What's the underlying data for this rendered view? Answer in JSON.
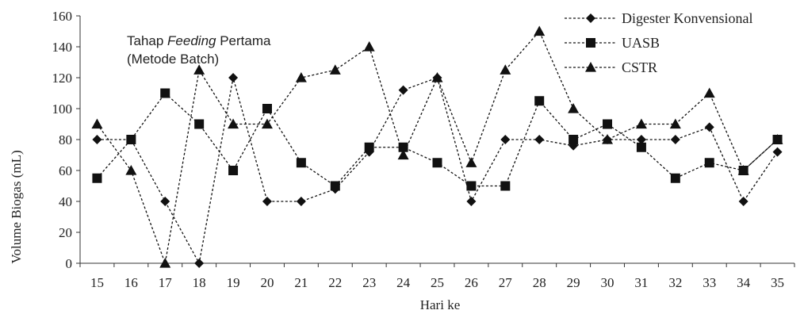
{
  "chart_data": {
    "type": "line",
    "xlabel": "Hari ke",
    "ylabel": "Volume Biogas (mL)",
    "x": [
      15,
      16,
      17,
      18,
      19,
      20,
      21,
      22,
      23,
      24,
      25,
      26,
      27,
      28,
      29,
      30,
      31,
      32,
      33,
      34,
      35
    ],
    "ylim": [
      0,
      160
    ],
    "yticks": [
      0,
      20,
      40,
      60,
      80,
      100,
      120,
      140,
      160
    ],
    "grid": false,
    "legend_position": "top-right",
    "annotation": {
      "line1_prefix": "Tahap ",
      "line1_italic": "Feeding",
      "line1_suffix": " Pertama",
      "line2": "(Metode Batch)"
    },
    "series": [
      {
        "name": "Digester Konvensional",
        "marker": "diamond",
        "color": "#111111",
        "values": [
          80,
          80,
          40,
          0,
          120,
          40,
          40,
          48,
          72,
          112,
          120,
          40,
          80,
          80,
          76,
          80,
          80,
          80,
          88,
          40,
          72
        ]
      },
      {
        "name": "UASB",
        "marker": "square",
        "color": "#111111",
        "values": [
          55,
          80,
          110,
          90,
          60,
          100,
          65,
          50,
          75,
          75,
          65,
          50,
          50,
          105,
          80,
          90,
          75,
          55,
          65,
          60,
          80
        ]
      },
      {
        "name": "CSTR",
        "marker": "triangle",
        "color": "#111111",
        "values": [
          90,
          60,
          0,
          125,
          90,
          90,
          120,
          125,
          140,
          70,
          120,
          65,
          125,
          150,
          100,
          80,
          90,
          90,
          110,
          60,
          80
        ]
      }
    ]
  }
}
